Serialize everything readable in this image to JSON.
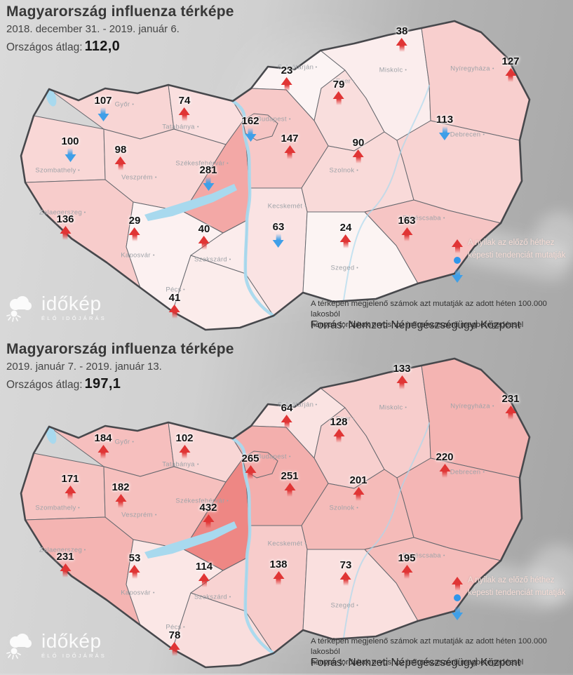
{
  "colors": {
    "trend_up": "#e03535",
    "trend_down": "#3f9fe8",
    "legend_dot": "#2f96ea",
    "water": "#a8d9ee",
    "scale_low": "#fdfafa",
    "scale_high": "#ee8481"
  },
  "maps": [
    {
      "title": "Magyarország influenza térképe",
      "date_range": "2018.  december 31. - 2019. január 6.",
      "avg_label": "Országos átlag:",
      "avg_value": "112,0",
      "legend_line1": "A nyilak az előző héthez",
      "legend_line2": "képesti tendenciát mutatják",
      "footnote_line1": "A térképen megjelenő számok azt mutatják az adott héten 100.000 lakosból",
      "footnote_line2": "hányan fordultak orvoshoz influenzaszerű megbetegedéssel",
      "source": "Forrás: Nemzeti Népegészségügyi Központ",
      "logo_name": "időkép",
      "logo_tagline": "ÉLŐ IDŐJÁRÁS",
      "regions": [
        {
          "id": "gyor",
          "city": "Győr",
          "value": 107,
          "trend": "down"
        },
        {
          "id": "tatabanya",
          "city": "Tatabánya",
          "value": 74,
          "trend": "up"
        },
        {
          "id": "szombathely",
          "city": "Szombathely",
          "value": 100,
          "trend": "down"
        },
        {
          "id": "veszprem",
          "city": "Veszprém",
          "value": 98,
          "trend": "up"
        },
        {
          "id": "szekesfehervar",
          "city": "Székesfehérvár",
          "value": 281,
          "trend": "down"
        },
        {
          "id": "salgotarjan",
          "city": "Salgótarján",
          "value": 23,
          "trend": "up"
        },
        {
          "id": "eger",
          "city": "Eger",
          "value": 79,
          "trend": "up"
        },
        {
          "id": "miskolc",
          "city": "Miskolc",
          "value": 38,
          "trend": "up"
        },
        {
          "id": "budapest",
          "city": "Budapest",
          "value": 162,
          "trend": "down"
        },
        {
          "id": "pest",
          "city": "",
          "value": 147,
          "trend": "up"
        },
        {
          "id": "szolnok",
          "city": "Szolnok",
          "value": 90,
          "trend": "up"
        },
        {
          "id": "nyiregyhaza",
          "city": "Nyíregyháza",
          "value": 127,
          "trend": "up"
        },
        {
          "id": "debrecen",
          "city": "Debrecen",
          "value": 113,
          "trend": "down"
        },
        {
          "id": "zalaegerszeg",
          "city": "Zalaegerszeg",
          "value": 136,
          "trend": "up"
        },
        {
          "id": "kaposvar",
          "city": "Kaposvár",
          "value": 29,
          "trend": "up"
        },
        {
          "id": "szekszard",
          "city": "Szekszárd",
          "value": 40,
          "trend": "up"
        },
        {
          "id": "pecs",
          "city": "Pécs",
          "value": 41,
          "trend": "up"
        },
        {
          "id": "kecskemet",
          "city": "Kecskemét",
          "value": 63,
          "trend": "down"
        },
        {
          "id": "szeged",
          "city": "Szeged",
          "value": 24,
          "trend": "up"
        },
        {
          "id": "bekescsaba",
          "city": "Békéscsaba",
          "value": 163,
          "trend": "up"
        }
      ]
    },
    {
      "title": "Magyarország influenza térképe",
      "date_range": "2019. január 7. - 2019. január 13.",
      "avg_label": "Országos átlag:",
      "avg_value": "197,1",
      "legend_line1": "A nyilak az előző héthez",
      "legend_line2": "képesti tendenciát mutatják",
      "footnote_line1": "A térképen megjelenő számok azt mutatják az adott héten 100.000 lakosból",
      "footnote_line2": "hányan fordultak orvoshoz influenzaszerű megbetegedéssel",
      "source": "Forrás: Nemzeti Népegészségügyi Központ",
      "logo_name": "időkép",
      "logo_tagline": "ÉLŐ IDŐJÁRÁS",
      "regions": [
        {
          "id": "gyor",
          "city": "Győr",
          "value": 184,
          "trend": "up"
        },
        {
          "id": "tatabanya",
          "city": "Tatabánya",
          "value": 102,
          "trend": "up"
        },
        {
          "id": "szombathely",
          "city": "Szombathely",
          "value": 171,
          "trend": "up"
        },
        {
          "id": "veszprem",
          "city": "Veszprém",
          "value": 182,
          "trend": "up"
        },
        {
          "id": "szekesfehervar",
          "city": "Székesfehérvár",
          "value": 432,
          "trend": "up"
        },
        {
          "id": "salgotarjan",
          "city": "Salgótarján",
          "value": 64,
          "trend": "up"
        },
        {
          "id": "eger",
          "city": "Eger",
          "value": 128,
          "trend": "up"
        },
        {
          "id": "miskolc",
          "city": "Miskolc",
          "value": 133,
          "trend": "up"
        },
        {
          "id": "budapest",
          "city": "Budapest",
          "value": 265,
          "trend": "up"
        },
        {
          "id": "pest",
          "city": "",
          "value": 251,
          "trend": "up"
        },
        {
          "id": "szolnok",
          "city": "Szolnok",
          "value": 201,
          "trend": "up"
        },
        {
          "id": "nyiregyhaza",
          "city": "Nyíregyháza",
          "value": 231,
          "trend": "up"
        },
        {
          "id": "debrecen",
          "city": "Debrecen",
          "value": 220,
          "trend": "up"
        },
        {
          "id": "zalaegerszeg",
          "city": "Zalaegerszeg",
          "value": 231,
          "trend": "up"
        },
        {
          "id": "kaposvar",
          "city": "Kaposvár",
          "value": 53,
          "trend": "up"
        },
        {
          "id": "szekszard",
          "city": "Szekszárd",
          "value": 114,
          "trend": "up"
        },
        {
          "id": "pecs",
          "city": "Pécs",
          "value": 78,
          "trend": "up"
        },
        {
          "id": "kecskemet",
          "city": "Kecskemét",
          "value": 138,
          "trend": "up"
        },
        {
          "id": "szeged",
          "city": "Szeged",
          "value": 73,
          "trend": "up"
        },
        {
          "id": "bekescsaba",
          "city": "Békéscsaba",
          "value": 195,
          "trend": "up"
        }
      ]
    }
  ]
}
